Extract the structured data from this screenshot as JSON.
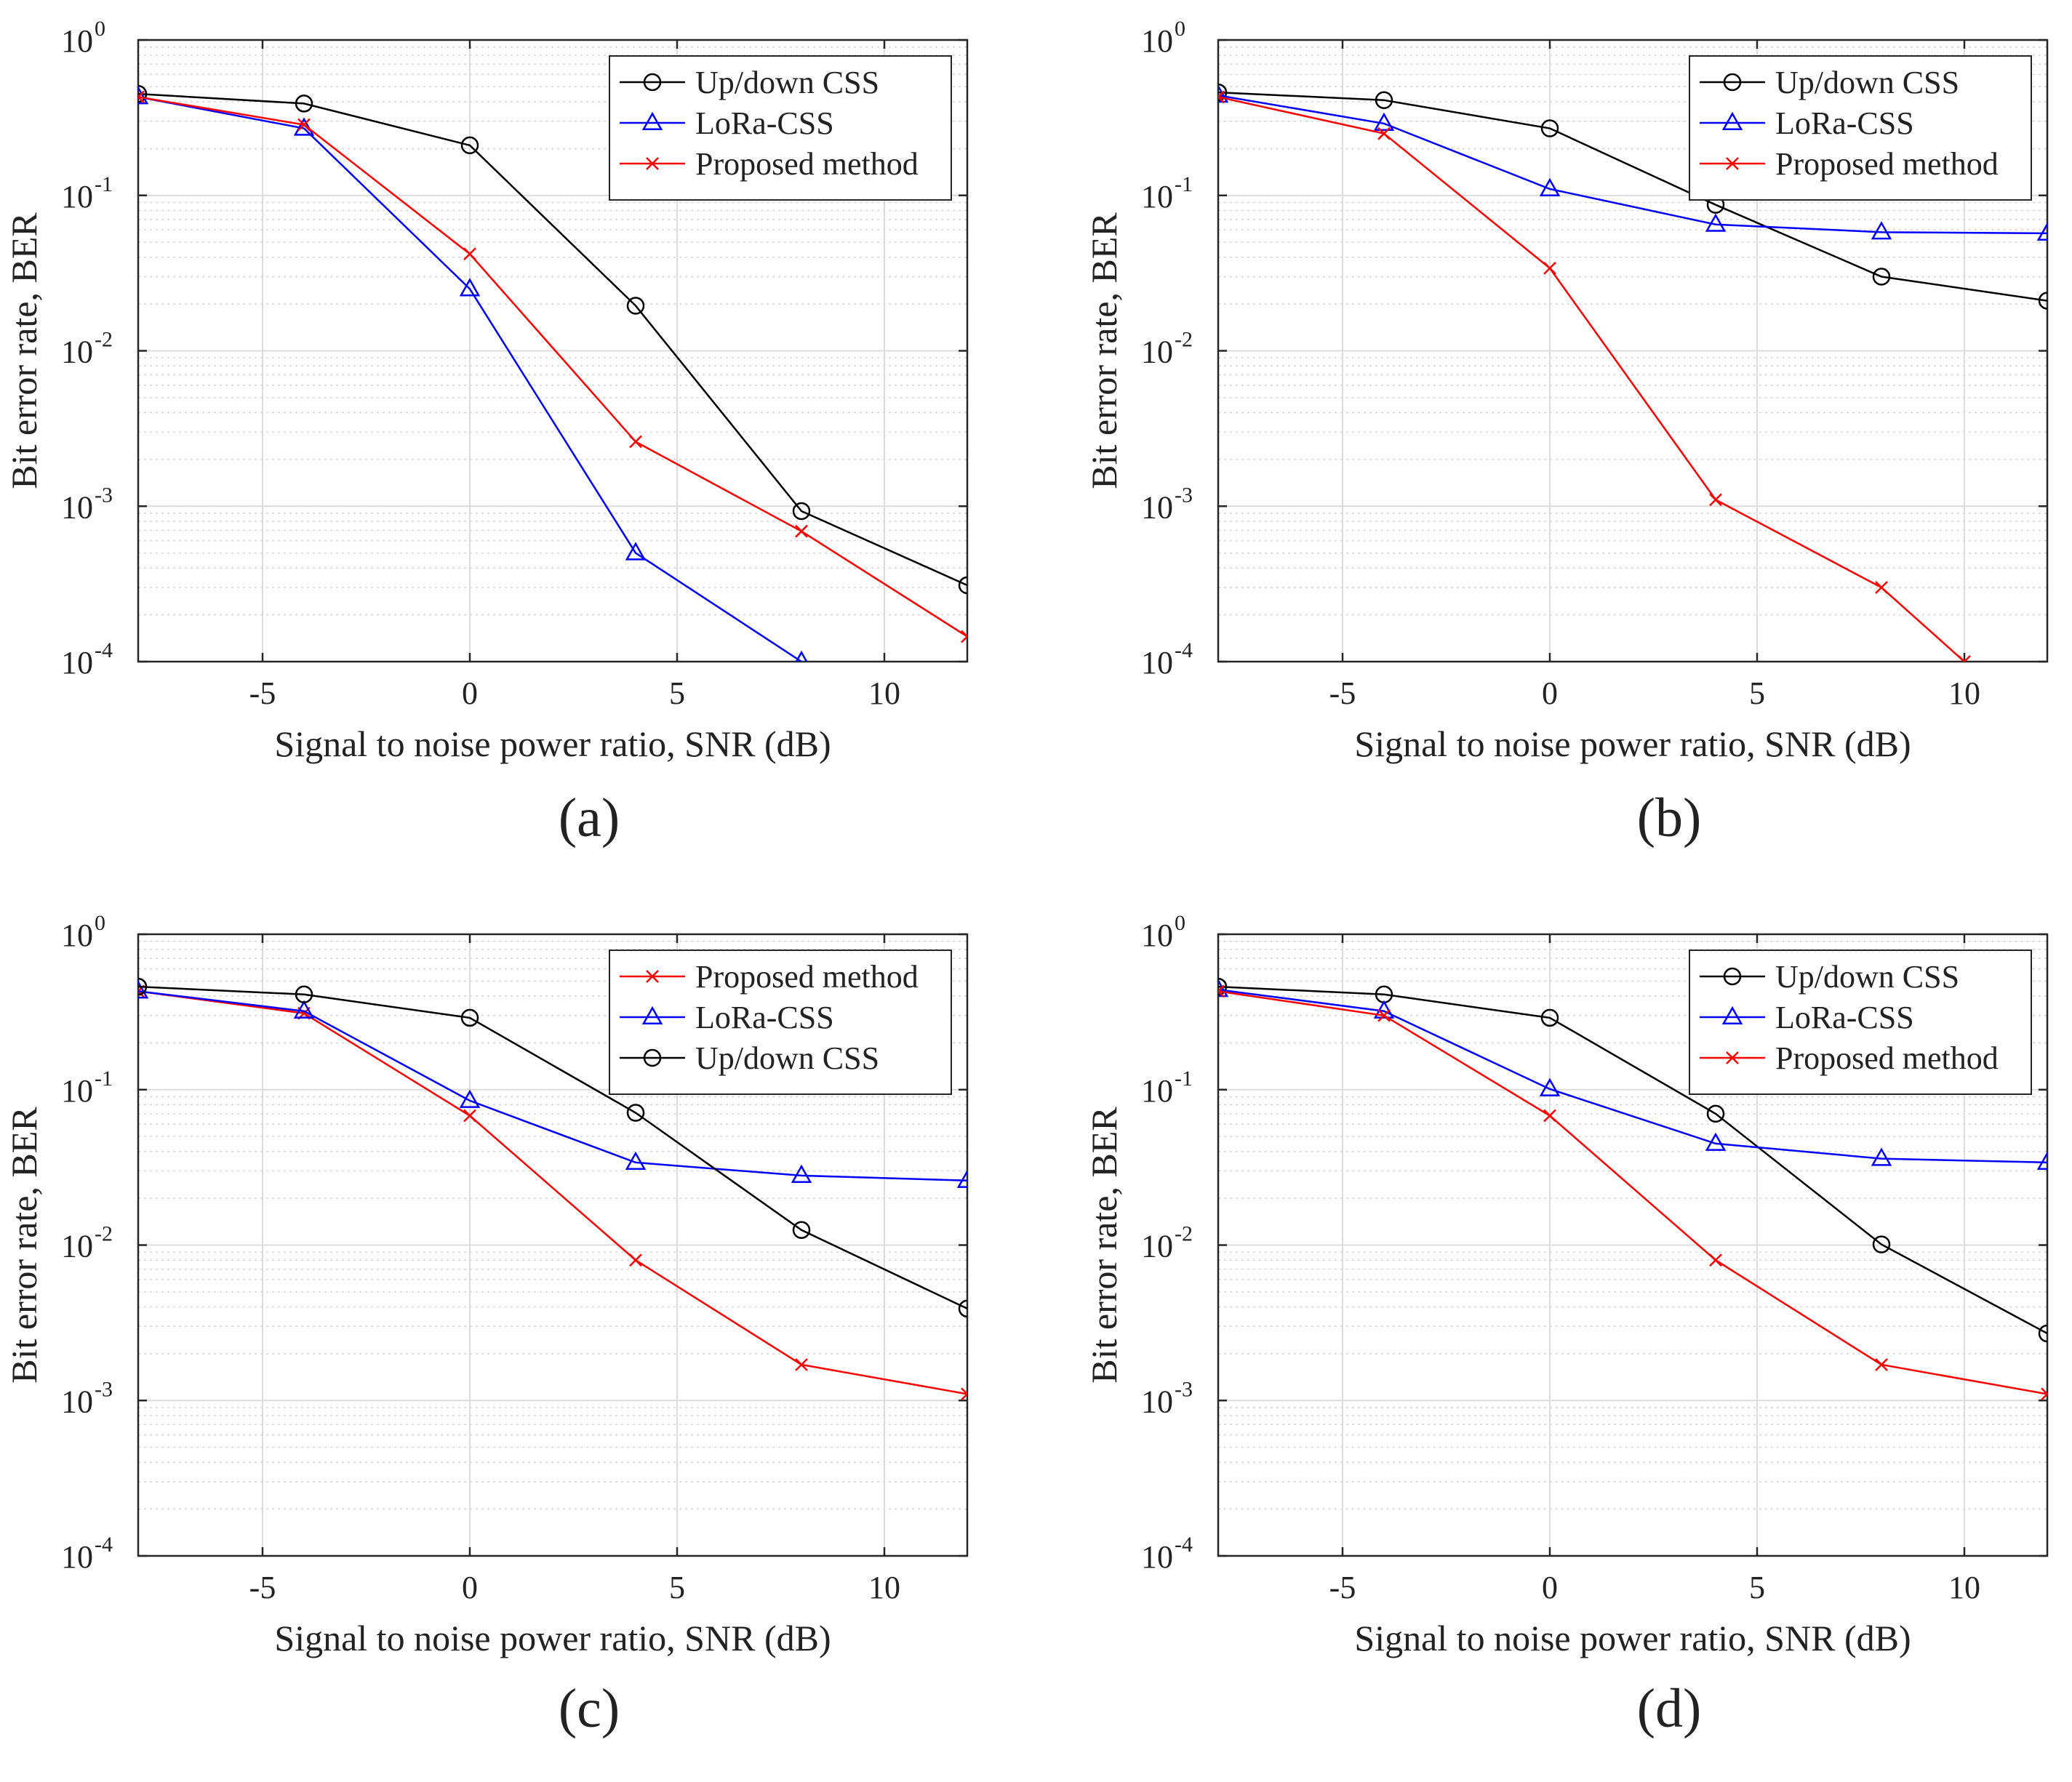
{
  "chart_data": [
    {
      "type": "line",
      "panel_label": "(a)",
      "xlabel": "Signal to noise power ratio, SNR (dB)",
      "ylabel": "Bit error rate, BER",
      "xlim": [
        -8,
        12
      ],
      "ylim": [
        0.0001,
        1
      ],
      "yscale": "log",
      "grid": true,
      "legend_position": "top-right",
      "xticks": [
        -5,
        0,
        5,
        10
      ],
      "xtick_labels": [
        "-5",
        "0",
        "5",
        "10"
      ],
      "yticks": [
        0.0001,
        0.001,
        0.01,
        0.1,
        1
      ],
      "ytick_labels": [
        {
          "base": "10",
          "exp": "-4"
        },
        {
          "base": "10",
          "exp": "-3"
        },
        {
          "base": "10",
          "exp": "-2"
        },
        {
          "base": "10",
          "exp": "-1"
        },
        {
          "base": "10",
          "exp": "0"
        }
      ],
      "series": [
        {
          "name": "Up/down CSS",
          "color": "#000000",
          "marker": "circle",
          "x": [
            -8,
            -4,
            0,
            4,
            8,
            12
          ],
          "values": [
            0.45,
            0.39,
            0.21,
            0.0195,
            0.00093,
            0.00031
          ]
        },
        {
          "name": "LoRa-CSS",
          "color": "#0000ff",
          "marker": "triangle",
          "x": [
            -8,
            -4,
            0,
            4,
            8
          ],
          "values": [
            0.43,
            0.27,
            0.025,
            0.0005,
            0.0001
          ]
        },
        {
          "name": "Proposed method",
          "color": "#ff0000",
          "marker": "x",
          "x": [
            -8,
            -4,
            0,
            4,
            8,
            12
          ],
          "values": [
            0.43,
            0.285,
            0.042,
            0.0026,
            0.00069,
            0.000145
          ]
        }
      ]
    },
    {
      "type": "line",
      "panel_label": "(b)",
      "xlabel": "Signal to noise power ratio, SNR (dB)",
      "ylabel": "Bit error rate, BER",
      "xlim": [
        -8,
        12
      ],
      "ylim": [
        0.0001,
        1
      ],
      "yscale": "log",
      "grid": true,
      "legend_position": "top-right",
      "xticks": [
        -5,
        0,
        5,
        10
      ],
      "xtick_labels": [
        "-5",
        "0",
        "5",
        "10"
      ],
      "yticks": [
        0.0001,
        0.001,
        0.01,
        0.1,
        1
      ],
      "ytick_labels": [
        {
          "base": "10",
          "exp": "-4"
        },
        {
          "base": "10",
          "exp": "-3"
        },
        {
          "base": "10",
          "exp": "-2"
        },
        {
          "base": "10",
          "exp": "-1"
        },
        {
          "base": "10",
          "exp": "0"
        }
      ],
      "series": [
        {
          "name": "Up/down CSS",
          "color": "#000000",
          "marker": "circle",
          "x": [
            -8,
            -4,
            0,
            4,
            8,
            12
          ],
          "values": [
            0.46,
            0.41,
            0.27,
            0.087,
            0.03,
            0.021
          ]
        },
        {
          "name": "LoRa-CSS",
          "color": "#0000ff",
          "marker": "triangle",
          "x": [
            -8,
            -4,
            0,
            4,
            8,
            12
          ],
          "values": [
            0.44,
            0.29,
            0.11,
            0.065,
            0.058,
            0.057
          ]
        },
        {
          "name": "Proposed method",
          "color": "#ff0000",
          "marker": "x",
          "x": [
            -8,
            -4,
            0,
            4,
            8,
            10
          ],
          "values": [
            0.43,
            0.25,
            0.034,
            0.0011,
            0.0003,
            0.0001
          ]
        }
      ]
    },
    {
      "type": "line",
      "panel_label": "(c)",
      "xlabel": "Signal to noise power ratio, SNR (dB)",
      "ylabel": "Bit error rate, BER",
      "xlim": [
        -8,
        12
      ],
      "ylim": [
        0.0001,
        1
      ],
      "yscale": "log",
      "grid": true,
      "legend_position": "top-right",
      "xticks": [
        -5,
        0,
        5,
        10
      ],
      "xtick_labels": [
        "-5",
        "0",
        "5",
        "10"
      ],
      "yticks": [
        0.0001,
        0.001,
        0.01,
        0.1,
        1
      ],
      "ytick_labels": [
        {
          "base": "10",
          "exp": "-4"
        },
        {
          "base": "10",
          "exp": "-3"
        },
        {
          "base": "10",
          "exp": "-2"
        },
        {
          "base": "10",
          "exp": "-1"
        },
        {
          "base": "10",
          "exp": "0"
        }
      ],
      "series": [
        {
          "name": "Proposed method",
          "color": "#ff0000",
          "marker": "x",
          "x": [
            -8,
            -4,
            0,
            4,
            8,
            12
          ],
          "values": [
            0.43,
            0.31,
            0.068,
            0.008,
            0.0017,
            0.0011
          ]
        },
        {
          "name": "LoRa-CSS",
          "color": "#0000ff",
          "marker": "triangle",
          "x": [
            -8,
            -4,
            0,
            4,
            8,
            12
          ],
          "values": [
            0.43,
            0.32,
            0.085,
            0.034,
            0.028,
            0.026
          ]
        },
        {
          "name": "Up/down CSS",
          "color": "#000000",
          "marker": "circle",
          "x": [
            -8,
            -4,
            0,
            4,
            8,
            12
          ],
          "values": [
            0.46,
            0.41,
            0.29,
            0.071,
            0.0125,
            0.0039
          ]
        }
      ]
    },
    {
      "type": "line",
      "panel_label": "(d)",
      "xlabel": "Signal to noise power ratio, SNR (dB)",
      "ylabel": "Bit error rate, BER",
      "xlim": [
        -8,
        12
      ],
      "ylim": [
        0.0001,
        1
      ],
      "yscale": "log",
      "grid": true,
      "legend_position": "top-right",
      "xticks": [
        -5,
        0,
        5,
        10
      ],
      "xtick_labels": [
        "-5",
        "0",
        "5",
        "10"
      ],
      "yticks": [
        0.0001,
        0.001,
        0.01,
        0.1,
        1
      ],
      "ytick_labels": [
        {
          "base": "10",
          "exp": "-4"
        },
        {
          "base": "10",
          "exp": "-3"
        },
        {
          "base": "10",
          "exp": "-2"
        },
        {
          "base": "10",
          "exp": "-1"
        },
        {
          "base": "10",
          "exp": "0"
        }
      ],
      "series": [
        {
          "name": "Up/down CSS",
          "color": "#000000",
          "marker": "circle",
          "x": [
            -8,
            -4,
            0,
            4,
            8,
            12
          ],
          "values": [
            0.46,
            0.41,
            0.29,
            0.07,
            0.0101,
            0.0027
          ]
        },
        {
          "name": "LoRa-CSS",
          "color": "#0000ff",
          "marker": "triangle",
          "x": [
            -8,
            -4,
            0,
            4,
            8,
            12
          ],
          "values": [
            0.44,
            0.32,
            0.101,
            0.045,
            0.036,
            0.034
          ]
        },
        {
          "name": "Proposed method",
          "color": "#ff0000",
          "marker": "x",
          "x": [
            -8,
            -4,
            0,
            4,
            8,
            12
          ],
          "values": [
            0.43,
            0.3,
            0.068,
            0.008,
            0.0017,
            0.0011
          ]
        }
      ]
    }
  ]
}
